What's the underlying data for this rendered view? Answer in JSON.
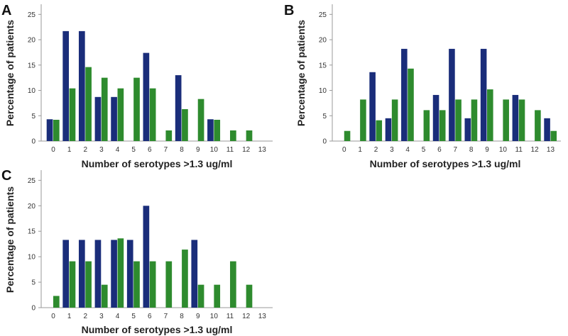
{
  "colors": {
    "series1": "#1a2d7a",
    "series2": "#2e8b2e"
  },
  "chart_data": [
    {
      "panel": "A",
      "type": "bar",
      "xlabel": "Number of serotypes >1.3 ug/ml",
      "ylabel": "Percentage of patients",
      "ylim": [
        0,
        27
      ],
      "yticks": [
        0,
        5,
        10,
        15,
        20,
        25
      ],
      "categories": [
        "0",
        "1",
        "2",
        "3",
        "4",
        "5",
        "6",
        "7",
        "8",
        "9",
        "10",
        "11",
        "12",
        "13"
      ],
      "series": [
        {
          "name": "series 1 (blue)",
          "values": [
            4.3,
            21.7,
            21.7,
            8.7,
            8.7,
            0,
            17.4,
            0,
            13.0,
            0,
            4.3,
            0,
            0,
            0
          ]
        },
        {
          "name": "series 2 (green)",
          "values": [
            4.2,
            10.4,
            14.6,
            12.5,
            10.4,
            12.5,
            10.4,
            2.1,
            6.3,
            8.3,
            4.2,
            2.1,
            2.1,
            0
          ]
        }
      ]
    },
    {
      "panel": "B",
      "type": "bar",
      "xlabel": "Number of serotypes >1.3 ug/ml",
      "ylabel": "Percentage of patients",
      "ylim": [
        0,
        27
      ],
      "yticks": [
        0,
        5,
        10,
        15,
        20,
        25
      ],
      "categories": [
        "0",
        "1",
        "2",
        "3",
        "4",
        "5",
        "6",
        "7",
        "8",
        "9",
        "10",
        "11",
        "12",
        "13"
      ],
      "series": [
        {
          "name": "series 1 (blue)",
          "values": [
            0,
            0,
            13.6,
            4.5,
            18.2,
            0,
            9.1,
            18.2,
            4.5,
            18.2,
            0,
            9.1,
            0,
            4.5
          ]
        },
        {
          "name": "series 2 (green)",
          "values": [
            2.0,
            8.2,
            4.1,
            8.2,
            14.3,
            6.1,
            6.1,
            8.2,
            8.2,
            10.2,
            8.2,
            8.2,
            6.1,
            2.0
          ]
        }
      ]
    },
    {
      "panel": "C",
      "type": "bar",
      "xlabel": "Number of serotypes >1.3 ug/ml",
      "ylabel": "Percentage of patients",
      "ylim": [
        0,
        27
      ],
      "yticks": [
        0,
        5,
        10,
        15,
        20,
        25
      ],
      "categories": [
        "0",
        "1",
        "2",
        "3",
        "4",
        "5",
        "6",
        "7",
        "8",
        "9",
        "10",
        "11",
        "12",
        "13"
      ],
      "series": [
        {
          "name": "series 1 (blue)",
          "values": [
            0,
            13.3,
            13.3,
            13.3,
            13.3,
            13.3,
            20.0,
            0,
            0,
            13.3,
            0,
            0,
            0,
            0
          ]
        },
        {
          "name": "series 2 (green)",
          "values": [
            2.3,
            9.1,
            9.1,
            4.5,
            13.6,
            9.1,
            9.1,
            9.1,
            11.4,
            4.5,
            4.5,
            9.1,
            4.5,
            0
          ]
        }
      ]
    }
  ]
}
